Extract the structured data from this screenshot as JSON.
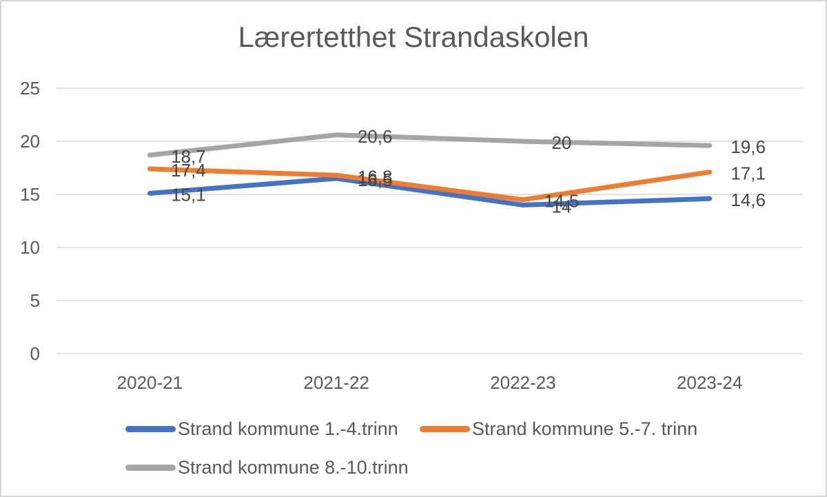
{
  "chart_data": {
    "type": "line",
    "title": "Lærertetthet Strandaskolen",
    "categories": [
      "2020-21",
      "2021-22",
      "2022-23",
      "2023-24"
    ],
    "series": [
      {
        "name": "Strand kommune 1.-4.trinn",
        "color": "#4472C4",
        "values": [
          15.1,
          16.5,
          14,
          14.6
        ],
        "labels": [
          "15,1",
          "16,5",
          "14",
          "14,6"
        ]
      },
      {
        "name": "Strand kommune 5.-7. trinn",
        "color": "#ED7D31",
        "values": [
          17.4,
          16.8,
          14.5,
          17.1
        ],
        "labels": [
          "17,4",
          "16,8",
          "14,5",
          "17,1"
        ]
      },
      {
        "name": "Strand kommune 8.-10.trinn",
        "color": "#A5A5A5",
        "values": [
          18.7,
          20.6,
          20,
          19.6
        ],
        "labels": [
          "18,7",
          "20,6",
          "20",
          "19,6"
        ]
      }
    ],
    "y_axis": {
      "min": 0,
      "max": 25,
      "step": 5,
      "tick_labels": [
        "0",
        "5",
        "10",
        "15",
        "20",
        "25"
      ]
    },
    "grid": true,
    "legend_position": "bottom",
    "data_labels": true
  },
  "colors": {
    "text": "#595959",
    "data_label_text": "#474747",
    "gridline": "#D9D9D9",
    "background": "#FFFFFF",
    "frame_border": "#D6D6D6"
  }
}
